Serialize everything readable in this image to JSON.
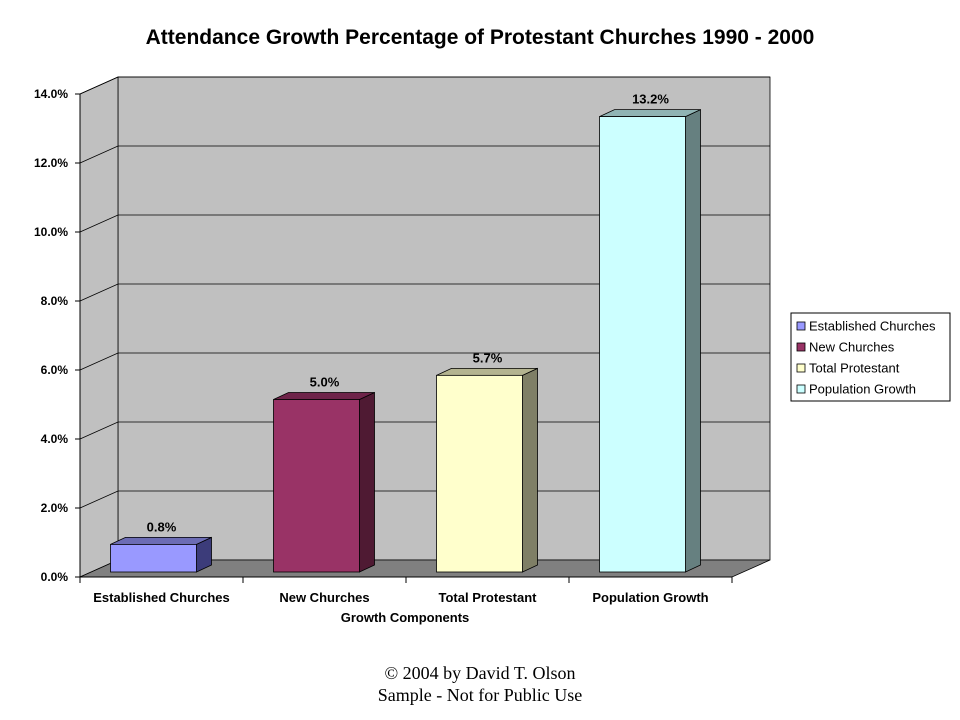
{
  "chart_data": {
    "type": "bar",
    "title": "Attendance Growth Percentage of Protestant Churches 1990 - 2000",
    "xlabel": "Growth Components",
    "ylabel": "",
    "categories": [
      "Established Churches",
      "New Churches",
      "Total Protestant",
      "Population Growth"
    ],
    "values": [
      0.8,
      5.0,
      5.7,
      13.2
    ],
    "data_labels": [
      "0.8%",
      "5.0%",
      "5.7%",
      "13.2%"
    ],
    "ylim": [
      0,
      14
    ],
    "yticks": [
      "0.0%",
      "2.0%",
      "4.0%",
      "6.0%",
      "8.0%",
      "10.0%",
      "12.0%",
      "14.0%"
    ],
    "grid": true,
    "legend_position": "right",
    "legend": [
      "Established Churches",
      "New Churches",
      "Total Protestant",
      "Population Growth"
    ],
    "colors": [
      "#9999ff",
      "#993366",
      "#ffffcc",
      "#ccffff"
    ],
    "side_colors": [
      "#3c3c7a",
      "#4f1a33",
      "#7f7f66",
      "#668080"
    ],
    "top_colors": [
      "#6c6cb4",
      "#6e2349",
      "#b4b490",
      "#90b4b4"
    ],
    "wall_color": "#c0c0c0",
    "floor_color": "#808080"
  },
  "footer": {
    "line1": "© 2004 by David T. Olson",
    "line2": "Sample - Not for Public Use"
  }
}
